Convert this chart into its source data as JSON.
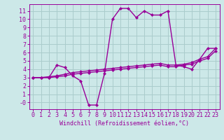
{
  "background_color": "#cce8e8",
  "grid_color": "#aacccc",
  "line_color": "#990099",
  "marker": "D",
  "markersize": 2.5,
  "linewidth": 1.0,
  "xlabel": "Windchill (Refroidissement éolien,°C)",
  "xlabel_fontsize": 6.0,
  "tick_fontsize": 6.0,
  "xlim": [
    -0.5,
    23.5
  ],
  "ylim": [
    -0.8,
    11.8
  ],
  "yticks": [
    0,
    1,
    2,
    3,
    4,
    5,
    6,
    7,
    8,
    9,
    10,
    11
  ],
  "ytick_labels": [
    "-0",
    "1",
    "2",
    "3",
    "4",
    "5",
    "6",
    "7",
    "8",
    "9",
    "10",
    "11"
  ],
  "xticks": [
    0,
    1,
    2,
    3,
    4,
    5,
    6,
    7,
    8,
    9,
    10,
    11,
    12,
    13,
    14,
    15,
    16,
    17,
    18,
    19,
    20,
    21,
    22,
    23
  ],
  "series1_x": [
    0,
    1,
    2,
    3,
    4,
    5,
    6,
    7,
    8,
    9,
    10,
    11,
    12,
    13,
    14,
    15,
    16,
    17,
    18,
    19,
    20,
    21,
    22,
    23
  ],
  "series1_y": [
    3.0,
    3.0,
    3.0,
    4.5,
    4.2,
    3.2,
    2.6,
    -0.3,
    -0.3,
    3.5,
    10.0,
    11.3,
    11.3,
    10.2,
    11.0,
    10.5,
    10.5,
    11.0,
    4.5,
    4.3,
    4.0,
    5.2,
    6.5,
    6.5
  ],
  "series2_x": [
    0,
    1,
    2,
    3,
    4,
    5,
    6,
    7,
    8,
    9,
    10,
    11,
    12,
    13,
    14,
    15,
    16,
    17,
    18,
    19,
    20,
    21,
    22,
    23
  ],
  "series2_y": [
    3.0,
    3.0,
    3.1,
    3.2,
    3.4,
    3.6,
    3.7,
    3.8,
    3.9,
    4.0,
    4.1,
    4.2,
    4.3,
    4.4,
    4.5,
    4.6,
    4.7,
    4.5,
    4.5,
    4.6,
    4.8,
    5.2,
    5.5,
    6.5
  ],
  "series3_x": [
    0,
    1,
    2,
    3,
    4,
    5,
    6,
    7,
    8,
    9,
    10,
    11,
    12,
    13,
    14,
    15,
    16,
    17,
    18,
    19,
    20,
    21,
    22,
    23
  ],
  "series3_y": [
    3.0,
    3.0,
    3.0,
    3.1,
    3.2,
    3.4,
    3.5,
    3.6,
    3.7,
    3.8,
    3.9,
    4.0,
    4.1,
    4.2,
    4.3,
    4.4,
    4.5,
    4.3,
    4.3,
    4.5,
    4.6,
    5.0,
    5.3,
    6.2
  ]
}
